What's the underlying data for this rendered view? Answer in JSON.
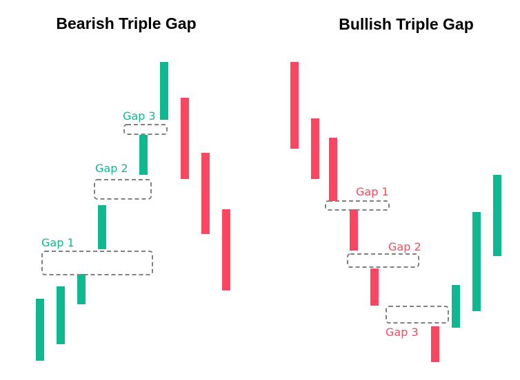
{
  "colors": {
    "bullish": "#0fb98f",
    "bearish": "#fa4660",
    "gap_outline": "#7f7f7f",
    "title": "#000000"
  },
  "bearish_panel": {
    "title": "Bearish Triple Gap",
    "gaps": [
      {
        "label": "Gap 1",
        "label_color": "bullish"
      },
      {
        "label": "Gap 2",
        "label_color": "bullish"
      },
      {
        "label": "Gap 3",
        "label_color": "bullish"
      }
    ],
    "candles": [
      {
        "direction": "bullish"
      },
      {
        "direction": "bullish"
      },
      {
        "direction": "bullish"
      },
      {
        "direction": "bullish"
      },
      {
        "direction": "bullish"
      },
      {
        "direction": "bullish"
      },
      {
        "direction": "bearish"
      },
      {
        "direction": "bearish"
      },
      {
        "direction": "bearish"
      }
    ]
  },
  "bullish_panel": {
    "title": "Bullish Triple Gap",
    "gaps": [
      {
        "label": "Gap 1",
        "label_color": "bearish"
      },
      {
        "label": "Gap 2",
        "label_color": "bearish"
      },
      {
        "label": "Gap 3",
        "label_color": "bearish"
      }
    ],
    "candles": [
      {
        "direction": "bearish"
      },
      {
        "direction": "bearish"
      },
      {
        "direction": "bearish"
      },
      {
        "direction": "bearish"
      },
      {
        "direction": "bearish"
      },
      {
        "direction": "bearish"
      },
      {
        "direction": "bullish"
      },
      {
        "direction": "bullish"
      },
      {
        "direction": "bullish"
      }
    ]
  }
}
